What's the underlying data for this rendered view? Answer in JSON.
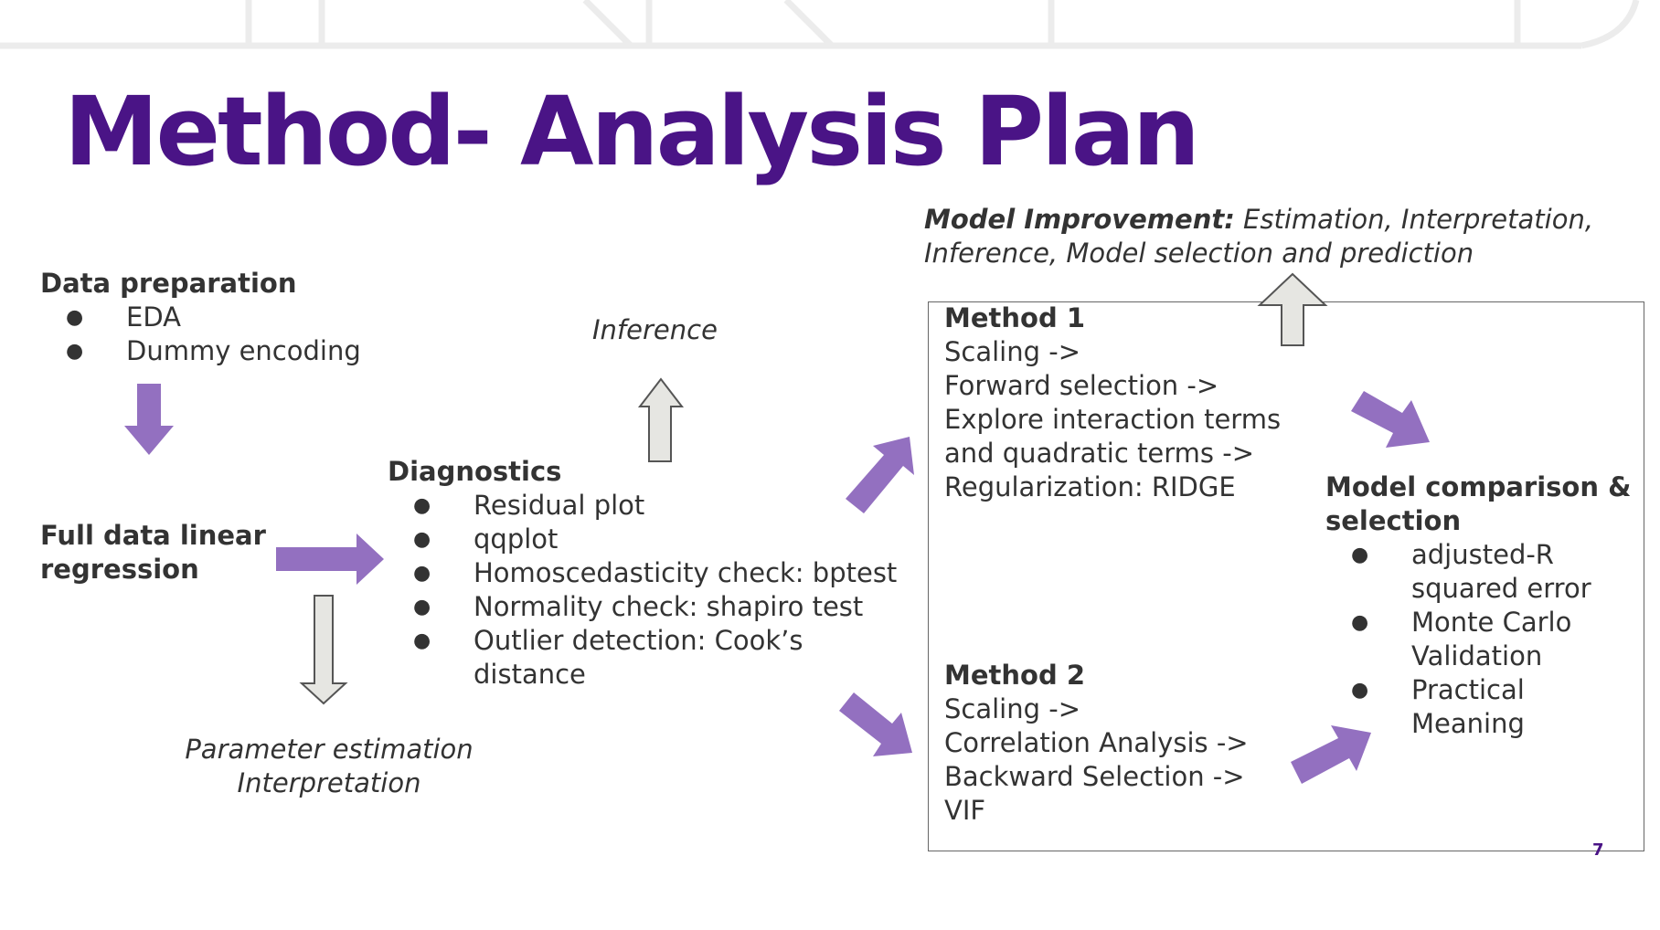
{
  "title": "Method- Analysis Plan",
  "page_number": "7",
  "colors": {
    "title": "#4a1486",
    "accent_arrow": "#9370c0",
    "gray_arrow_fill": "#e6e6e2",
    "text": "#333333"
  },
  "data_preparation": {
    "heading": "Data preparation",
    "items": [
      "EDA",
      "Dummy encoding"
    ]
  },
  "full_regression": {
    "line1": "Full data linear",
    "line2": "regression"
  },
  "parameter_estimation": {
    "line1": "Parameter estimation",
    "line2": "Interpretation"
  },
  "inference": {
    "label": "Inference"
  },
  "diagnostics": {
    "heading": "Diagnostics",
    "items": [
      "Residual plot",
      "qqplot",
      "Homoscedasticity check: bptest",
      "Normality check: shapiro test",
      "Outlier detection: Cook’s distance"
    ]
  },
  "model_improvement": {
    "bold": "Model Improvement:",
    "rest_line1": " Estimation, Interpretation,",
    "line2": "Inference, Model selection and prediction"
  },
  "method1": {
    "heading": "Method 1",
    "lines": [
      "Scaling ->",
      "Forward selection ->",
      "Explore interaction terms",
      "and quadratic terms ->",
      "Regularization: RIDGE"
    ]
  },
  "method2": {
    "heading": "Method 2",
    "lines": [
      "Scaling ->",
      "Correlation Analysis ->",
      "Backward Selection ->",
      "VIF"
    ]
  },
  "model_comparison": {
    "heading_line1": "Model comparison &",
    "heading_line2": "selection",
    "items": [
      "adjusted-R squared error",
      "Monte Carlo Validation",
      "Practical Meaning"
    ]
  },
  "icons": {
    "down_arrow": "arrow-down-icon",
    "right_arrow": "arrow-right-icon",
    "up_arrow": "arrow-up-icon",
    "diag_up_arrow": "arrow-up-right-icon",
    "diag_down_arrow": "arrow-down-right-icon"
  }
}
